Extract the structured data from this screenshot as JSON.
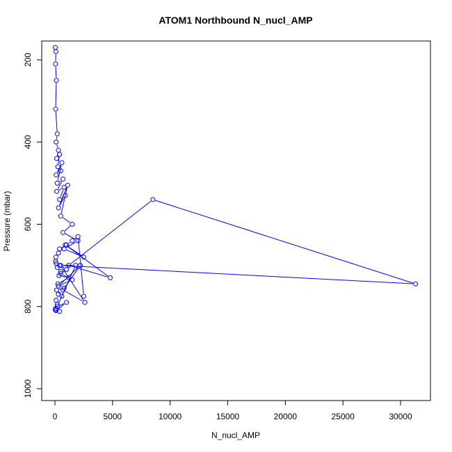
{
  "chart_data": {
    "type": "line",
    "title": "ATOM1 Northbound N_nucl_AMP",
    "xlabel": "N_nucl_AMP",
    "ylabel": "Pressure (mbar)",
    "xlim": [
      0,
      32000
    ],
    "ylim": [
      1000,
      150
    ],
    "y_reversed": true,
    "x_ticks": [
      "0",
      "5000",
      "10000",
      "15000",
      "20000",
      "25000",
      "30000"
    ],
    "x_tick_values": [
      0,
      5000,
      10000,
      15000,
      20000,
      25000,
      30000
    ],
    "y_ticks": [
      "200",
      "400",
      "600",
      "800",
      "1000"
    ],
    "y_tick_values": [
      200,
      400,
      600,
      800,
      1000
    ],
    "grid": false,
    "series_color": "#0000ff",
    "marker": "open-circle",
    "series": [
      {
        "x": [
          30,
          80,
          50,
          120,
          60,
          200,
          100,
          300,
          150,
          400,
          250,
          500,
          100,
          600,
          200,
          700,
          150,
          800,
          400,
          900,
          300,
          1100,
          500,
          1500,
          700,
          2000,
          800,
          2500,
          900,
          4800,
          1200,
          8500,
          31300,
          400,
          1000,
          500,
          1500,
          300,
          2200,
          700,
          2600,
          500,
          1800,
          200,
          1000,
          100,
          400,
          50,
          30,
          200,
          100,
          300,
          600,
          150,
          800,
          250,
          1200,
          350,
          500,
          200,
          100,
          50,
          80,
          300,
          400,
          1000,
          1500,
          2000,
          2500
        ],
        "y": [
          170,
          180,
          210,
          250,
          320,
          380,
          400,
          420,
          440,
          430,
          460,
          470,
          480,
          450,
          500,
          490,
          520,
          510,
          540,
          530,
          560,
          505,
          580,
          600,
          620,
          640,
          660,
          680,
          650,
          730,
          700,
          540,
          745,
          700,
          710,
          720,
          735,
          750,
          700,
          760,
          790,
          700,
          700,
          800,
          790,
          810,
          812,
          805,
          808,
          795,
          785,
          770,
          775,
          760,
          755,
          745,
          730,
          725,
          715,
          705,
          695,
          690,
          680,
          670,
          660,
          650,
          640,
          630,
          775
        ]
      }
    ]
  }
}
